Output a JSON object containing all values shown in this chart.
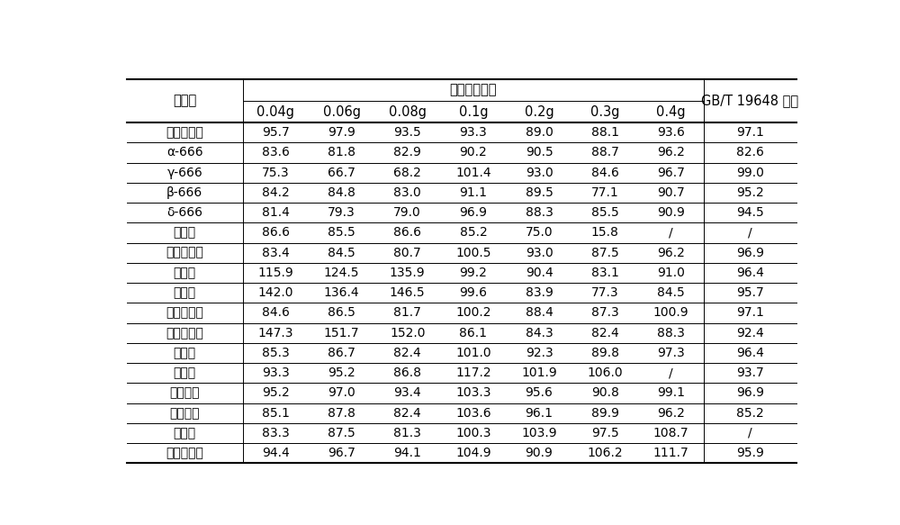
{
  "title_main": "石墨化碳用量",
  "rows": [
    [
      "五氯硝基苯",
      "95.7",
      "97.9",
      "93.5",
      "93.3",
      "89.0",
      "88.1",
      "93.6",
      "97.1"
    ],
    [
      "α-666",
      "83.6",
      "81.8",
      "82.9",
      "90.2",
      "90.5",
      "88.7",
      "96.2",
      "82.6"
    ],
    [
      "γ-666",
      "75.3",
      "66.7",
      "68.2",
      "101.4",
      "93.0",
      "84.6",
      "96.7",
      "99.0"
    ],
    [
      "β-666",
      "84.2",
      "84.8",
      "83.0",
      "91.1",
      "89.5",
      "77.1",
      "90.7",
      "95.2"
    ],
    [
      "δ-666",
      "81.4",
      "79.3",
      "79.0",
      "96.9",
      "88.3",
      "85.5",
      "90.9",
      "94.5"
    ],
    [
      "百菌清",
      "86.6",
      "85.5",
      "86.6",
      "85.2",
      "75.0",
      "15.8",
      "/",
      "/"
    ],
    [
      "乙烯菌核利",
      "83.4",
      "84.5",
      "80.7",
      "100.5",
      "93.0",
      "87.5",
      "96.2",
      "96.9"
    ],
    [
      "三唇锐",
      "115.9",
      "124.5",
      "135.9",
      "99.2",
      "90.4",
      "83.1",
      "91.0",
      "96.4"
    ],
    [
      "氯虫腼",
      "142.0",
      "136.4",
      "146.5",
      "99.6",
      "83.9",
      "77.3",
      "84.5",
      "95.7"
    ],
    [
      "三氯杀螨醇",
      "84.6",
      "86.5",
      "81.7",
      "100.2",
      "88.4",
      "87.3",
      "100.9",
      "97.1"
    ],
    [
      "二甲戊乐灵",
      "147.3",
      "151.7",
      "152.0",
      "86.1",
      "84.3",
      "82.4",
      "88.3",
      "92.4"
    ],
    [
      "腐霏利",
      "85.3",
      "86.7",
      "82.4",
      "101.0",
      "92.3",
      "89.8",
      "97.3",
      "96.4"
    ],
    [
      "虫螨腼",
      "93.3",
      "95.2",
      "86.8",
      "117.2",
      "101.9",
      "106.0",
      "/",
      "93.7"
    ],
    [
      "联苯菊酯",
      "95.2",
      "97.0",
      "93.4",
      "103.3",
      "95.6",
      "90.8",
      "99.1",
      "96.9"
    ],
    [
      "甲氯菊酯",
      "85.1",
      "87.8",
      "82.4",
      "103.6",
      "96.1",
      "89.9",
      "96.2",
      "85.2"
    ],
    [
      "异菌脲",
      "83.3",
      "87.5",
      "81.3",
      "100.3",
      "103.9",
      "97.5",
      "108.7",
      "/"
    ],
    [
      "氯氯氯菊酯",
      "94.4",
      "96.7",
      "94.1",
      "104.9",
      "90.9",
      "106.2",
      "111.7",
      "95.9"
    ]
  ],
  "compound_label": "化合物",
  "gbt_label": "GB/T 19648 方法",
  "sub_headers": [
    "0.04g",
    "0.06g",
    "0.08g",
    "0.1g",
    "0.2g",
    "0.3g",
    "0.4g"
  ],
  "bg_color": "#ffffff",
  "text_color": "#000000",
  "line_color": "#000000"
}
